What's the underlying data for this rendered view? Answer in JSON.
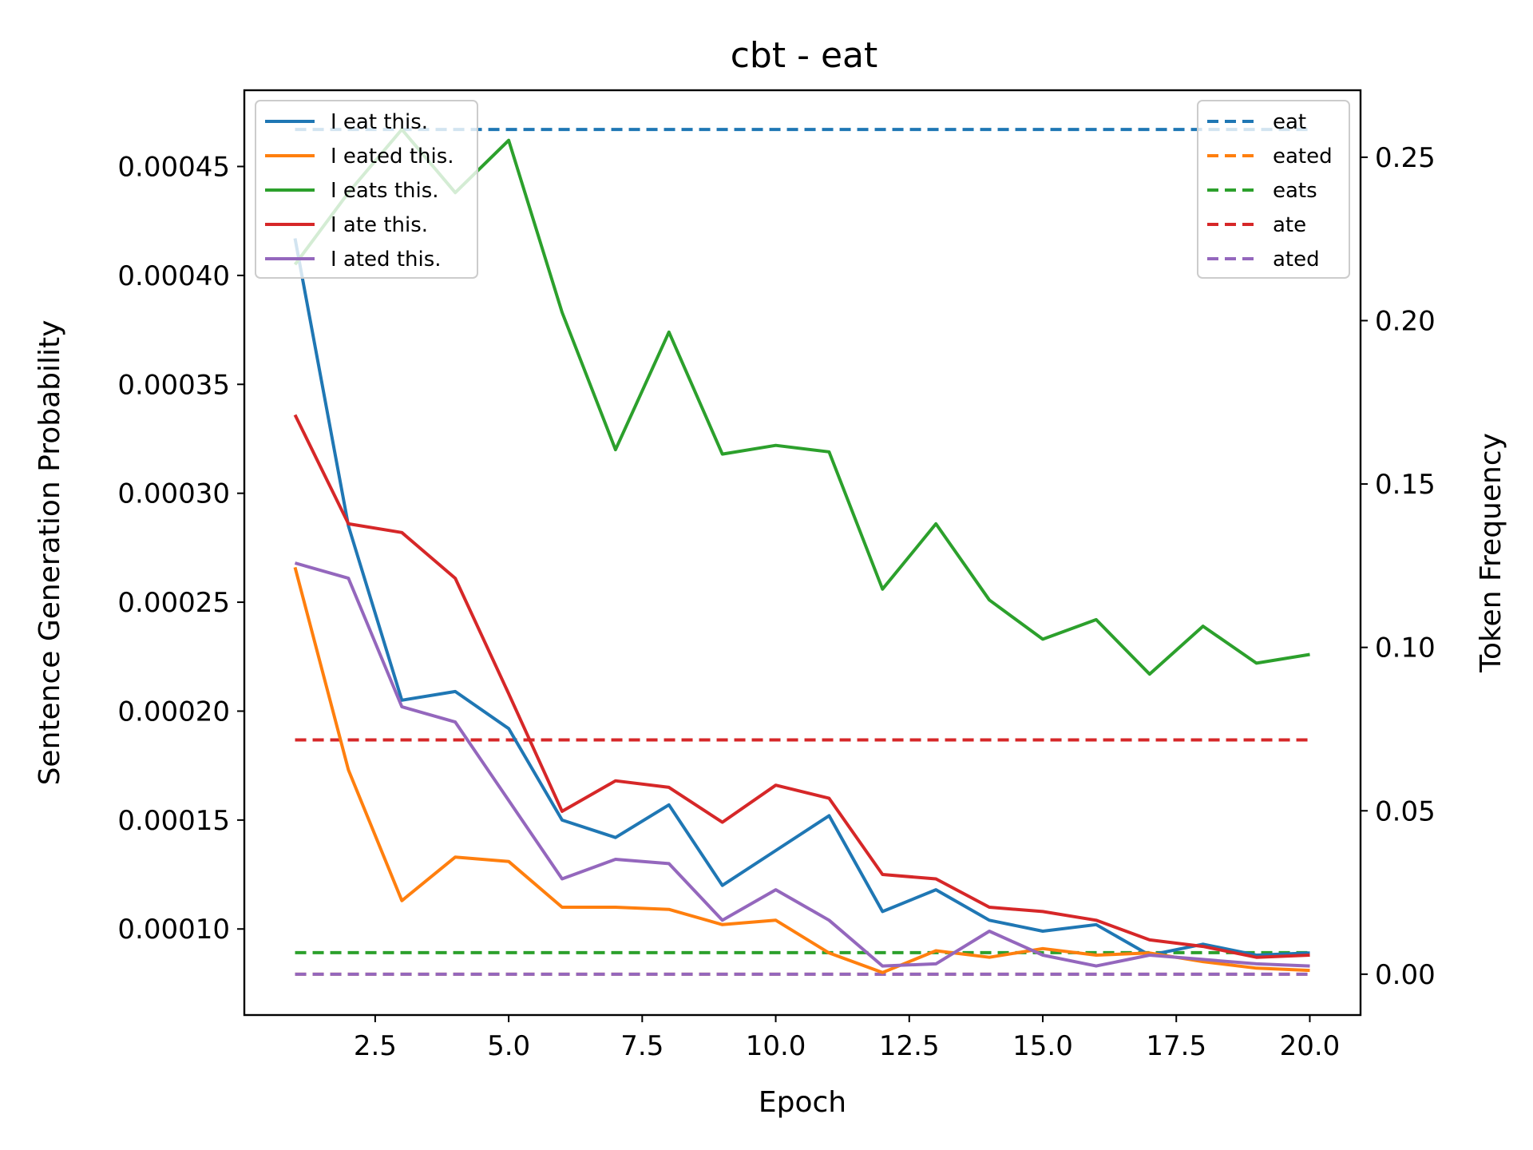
{
  "chart_data": {
    "type": "line",
    "title": "cbt - eat",
    "xlabel": "Epoch",
    "ylabel": "Sentence Generation Probability",
    "y2label": "Token Frequency",
    "xlim": [
      0.05,
      20.95
    ],
    "ylim": [
      6.05e-05,
      0.000485
    ],
    "y2lim": [
      -0.0125,
      0.2705
    ],
    "xticks": [
      2.5,
      5.0,
      7.5,
      10.0,
      12.5,
      15.0,
      17.5,
      20.0
    ],
    "xtick_labels": [
      "2.5",
      "5.0",
      "7.5",
      "10.0",
      "12.5",
      "15.0",
      "17.5",
      "20.0"
    ],
    "yticks": [
      0.0001,
      0.00015,
      0.0002,
      0.00025,
      0.0003,
      0.00035,
      0.0004,
      0.00045
    ],
    "ytick_labels": [
      "0.00010",
      "0.00015",
      "0.00020",
      "0.00025",
      "0.00030",
      "0.00035",
      "0.00040",
      "0.00045"
    ],
    "y2ticks": [
      0.0,
      0.05,
      0.1,
      0.15,
      0.2,
      0.25
    ],
    "y2tick_labels": [
      "0.00",
      "0.05",
      "0.10",
      "0.15",
      "0.20",
      "0.25"
    ],
    "x": [
      1,
      2,
      3,
      4,
      5,
      6,
      7,
      8,
      9,
      10,
      11,
      12,
      13,
      14,
      15,
      16,
      17,
      18,
      19,
      20
    ],
    "series": [
      {
        "name": "I eat this.",
        "color": "#1f77b4",
        "axis": "left",
        "values": [
          0.000417,
          0.000285,
          0.000205,
          0.000209,
          0.000192,
          0.00015,
          0.000142,
          0.000157,
          0.00012,
          0.000136,
          0.000152,
          0.000108,
          0.000118,
          0.000104,
          9.9e-05,
          0.000102,
          8.8e-05,
          9.3e-05,
          8.8e-05,
          8.9e-05
        ]
      },
      {
        "name": "I eated this.",
        "color": "#ff7f0e",
        "axis": "left",
        "values": [
          0.000266,
          0.000173,
          0.000113,
          0.000133,
          0.000131,
          0.00011,
          0.00011,
          0.000109,
          0.000102,
          0.000104,
          8.9e-05,
          8e-05,
          9e-05,
          8.7e-05,
          9.1e-05,
          8.8e-05,
          8.9e-05,
          8.5e-05,
          8.2e-05,
          8.1e-05
        ]
      },
      {
        "name": "I eats this.",
        "color": "#2ca02c",
        "axis": "left",
        "values": [
          0.000405,
          0.000438,
          0.000467,
          0.000438,
          0.000462,
          0.000383,
          0.00032,
          0.000374,
          0.000318,
          0.000322,
          0.000319,
          0.000256,
          0.000286,
          0.000251,
          0.000233,
          0.000242,
          0.000217,
          0.000239,
          0.000222,
          0.000226
        ]
      },
      {
        "name": "I ate this.",
        "color": "#d62728",
        "axis": "left",
        "values": [
          0.000336,
          0.000286,
          0.000282,
          0.000261,
          0.000208,
          0.000154,
          0.000168,
          0.000165,
          0.000149,
          0.000166,
          0.00016,
          0.000125,
          0.000123,
          0.00011,
          0.000108,
          0.000104,
          9.5e-05,
          9.2e-05,
          8.7e-05,
          8.8e-05
        ]
      },
      {
        "name": "I ated this.",
        "color": "#9467bd",
        "axis": "left",
        "values": [
          0.000268,
          0.000261,
          0.000202,
          0.000195,
          0.000159,
          0.000123,
          0.000132,
          0.00013,
          0.000104,
          0.000118,
          0.000104,
          8.3e-05,
          8.4e-05,
          9.9e-05,
          8.8e-05,
          8.3e-05,
          8.8e-05,
          8.6e-05,
          8.4e-05,
          8.3e-05
        ]
      }
    ],
    "series2": [
      {
        "name": "eat",
        "color": "#1f77b4",
        "axis": "right",
        "dashed": true,
        "value": 0.2585
      },
      {
        "name": "eated",
        "color": "#ff7f0e",
        "axis": "right",
        "dashed": true,
        "value": 0.0
      },
      {
        "name": "eats",
        "color": "#2ca02c",
        "axis": "right",
        "dashed": true,
        "value": 0.0066
      },
      {
        "name": "ate",
        "color": "#d62728",
        "axis": "right",
        "dashed": true,
        "value": 0.0717
      },
      {
        "name": "ated",
        "color": "#9467bd",
        "axis": "right",
        "dashed": true,
        "value": 0.0
      }
    ],
    "legend_left": "top-left",
    "legend_right": "top-right",
    "grid": false
  }
}
